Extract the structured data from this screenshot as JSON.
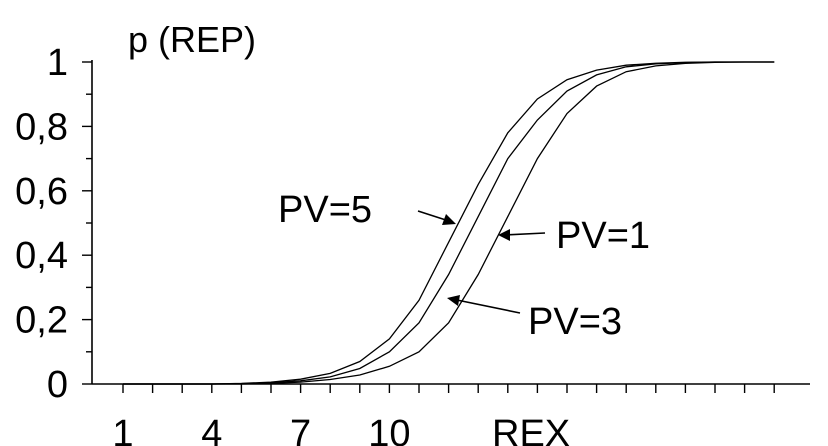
{
  "chart_data": {
    "type": "line",
    "title": "",
    "ylabel": "p (REP)",
    "xlabel": "REX",
    "xlim": [
      0,
      23
    ],
    "ylim": [
      0,
      1
    ],
    "x_tick_labels": [
      {
        "x": 1,
        "label": "1"
      },
      {
        "x": 4,
        "label": "4"
      },
      {
        "x": 7,
        "label": "7"
      },
      {
        "x": 10,
        "label": "10"
      }
    ],
    "y_tick_labels": [
      {
        "y": 0,
        "label": "0"
      },
      {
        "y": 0.2,
        "label": "0,2"
      },
      {
        "y": 0.4,
        "label": "0,4"
      },
      {
        "y": 0.6,
        "label": "0,6"
      },
      {
        "y": 0.8,
        "label": "0,8"
      },
      {
        "y": 1,
        "label": "1"
      }
    ],
    "x": [
      1,
      2,
      3,
      4,
      5,
      6,
      7,
      8,
      9,
      10,
      11,
      12,
      13,
      14,
      15,
      16,
      17,
      18,
      19,
      20,
      21,
      22,
      23
    ],
    "series": [
      {
        "name": "PV=5",
        "values": [
          0,
          0,
          0,
          0,
          0.002,
          0.006,
          0.015,
          0.033,
          0.07,
          0.14,
          0.26,
          0.44,
          0.62,
          0.78,
          0.885,
          0.945,
          0.975,
          0.99,
          0.996,
          0.999,
          1,
          1,
          1
        ]
      },
      {
        "name": "PV=3",
        "values": [
          0,
          0,
          0,
          0,
          0.001,
          0.004,
          0.01,
          0.022,
          0.048,
          0.1,
          0.19,
          0.34,
          0.52,
          0.7,
          0.82,
          0.91,
          0.96,
          0.985,
          0.994,
          0.998,
          1,
          1,
          1
        ]
      },
      {
        "name": "PV=1",
        "values": [
          0,
          0,
          0,
          0,
          0,
          0.002,
          0.006,
          0.014,
          0.028,
          0.055,
          0.1,
          0.19,
          0.34,
          0.52,
          0.7,
          0.84,
          0.925,
          0.97,
          0.988,
          0.996,
          0.999,
          1,
          1
        ]
      }
    ],
    "annotations": [
      {
        "text": "PV=5",
        "series": "PV=5"
      },
      {
        "text": "PV=1",
        "series": "PV=1"
      },
      {
        "text": "PV=3",
        "series": "PV=3"
      }
    ],
    "grid": false,
    "legend": "none"
  }
}
